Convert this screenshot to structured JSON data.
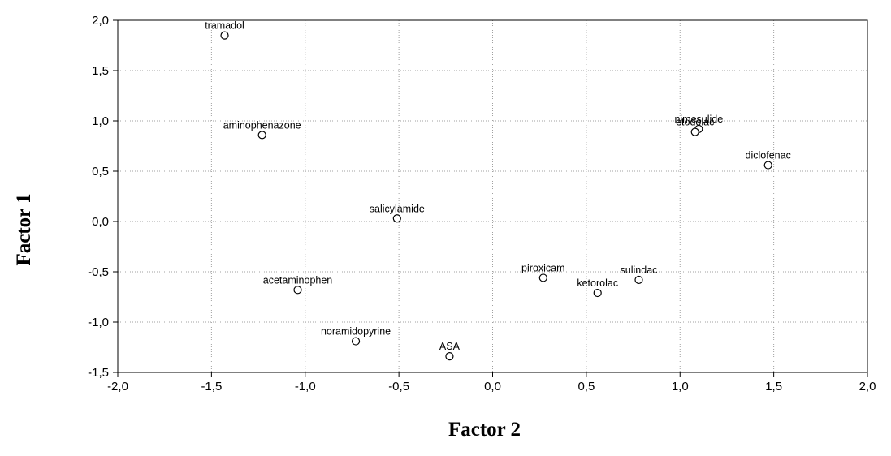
{
  "chart_data": {
    "type": "scatter",
    "xlabel": "Factor 2",
    "ylabel": "Factor 1",
    "xlim": [
      -2.0,
      2.0
    ],
    "ylim": [
      -1.5,
      2.0
    ],
    "xticks": [
      -2.0,
      -1.5,
      -1.0,
      -0.5,
      0.0,
      0.5,
      1.0,
      1.5,
      2.0
    ],
    "yticks": [
      -1.5,
      -1.0,
      -0.5,
      0.0,
      0.5,
      1.0,
      1.5,
      2.0
    ],
    "xtick_labels": [
      "-2,0",
      "-1,5",
      "-1,0",
      "-0,5",
      "0,0",
      "0,5",
      "1,0",
      "1,5",
      "2,0"
    ],
    "ytick_labels": [
      "-1,5",
      "-1,0",
      "-0,5",
      "0,0",
      "0,5",
      "1,0",
      "1,5",
      "2,0"
    ],
    "grid": true,
    "points": [
      {
        "label": "tramadol",
        "x": -1.43,
        "y": 1.85
      },
      {
        "label": "aminophenazone",
        "x": -1.23,
        "y": 0.86
      },
      {
        "label": "salicylamide",
        "x": -0.51,
        "y": 0.03
      },
      {
        "label": "acetaminophen",
        "x": -1.04,
        "y": -0.68
      },
      {
        "label": "noramidopyrine",
        "x": -0.73,
        "y": -1.19
      },
      {
        "label": "ASA",
        "x": -0.23,
        "y": -1.34
      },
      {
        "label": "piroxicam",
        "x": 0.27,
        "y": -0.56
      },
      {
        "label": "ketorolac",
        "x": 0.56,
        "y": -0.71
      },
      {
        "label": "sulindac",
        "x": 0.78,
        "y": -0.58
      },
      {
        "label": "nimesulide",
        "x": 1.1,
        "y": 0.92
      },
      {
        "label": "etodolac",
        "x": 1.08,
        "y": 0.89
      },
      {
        "label": "diclofenac",
        "x": 1.47,
        "y": 0.56
      }
    ]
  }
}
